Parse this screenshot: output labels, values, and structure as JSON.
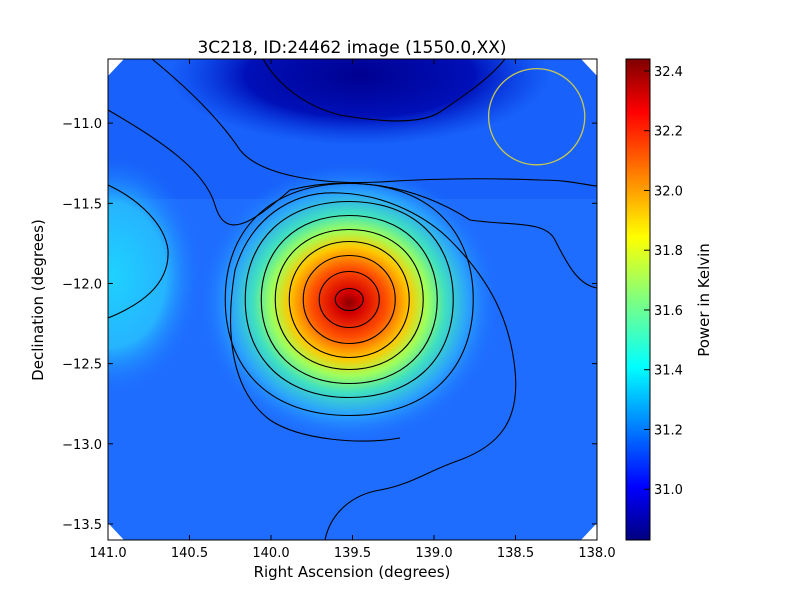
{
  "chart_data": {
    "type": "heatmap",
    "title": "3C218, ID:24462 image (1550.0,XX)",
    "xlabel": "Right Ascension (degrees)",
    "ylabel": "Declination (degrees)",
    "colorbar_label": "Power in Kelvin",
    "xlim": [
      141.0,
      138.0
    ],
    "ylim": [
      -13.6,
      -10.6
    ],
    "x_ticks": [
      141.0,
      140.5,
      140.0,
      139.5,
      139.0,
      138.5,
      138.0
    ],
    "x_tick_labels": [
      "141.0",
      "140.5",
      "140.0",
      "139.5",
      "139.0",
      "138.5",
      "138.0"
    ],
    "y_ticks": [
      -11.0,
      -11.5,
      -12.0,
      -12.5,
      -13.0,
      -13.5
    ],
    "y_tick_labels": [
      "−11.0",
      "−11.5",
      "−12.0",
      "−12.5",
      "−13.0",
      "−13.5"
    ],
    "colorbar_range": [
      30.83,
      32.44
    ],
    "colorbar_ticks": [
      31.0,
      31.2,
      31.4,
      31.6,
      31.8,
      32.0,
      32.2,
      32.4
    ],
    "colorbar_tick_labels": [
      "31.0",
      "31.2",
      "31.4",
      "31.6",
      "31.8",
      "32.0",
      "32.2",
      "32.4"
    ],
    "colormap": "jet",
    "grid": false,
    "source_peak": {
      "ra": 139.52,
      "dec": -12.1,
      "value": 32.44
    },
    "beam_circle": {
      "ra": 138.37,
      "dec": -10.96,
      "radius_deg": 0.3,
      "color": "#c8c850"
    },
    "contour_color": "#000000"
  }
}
